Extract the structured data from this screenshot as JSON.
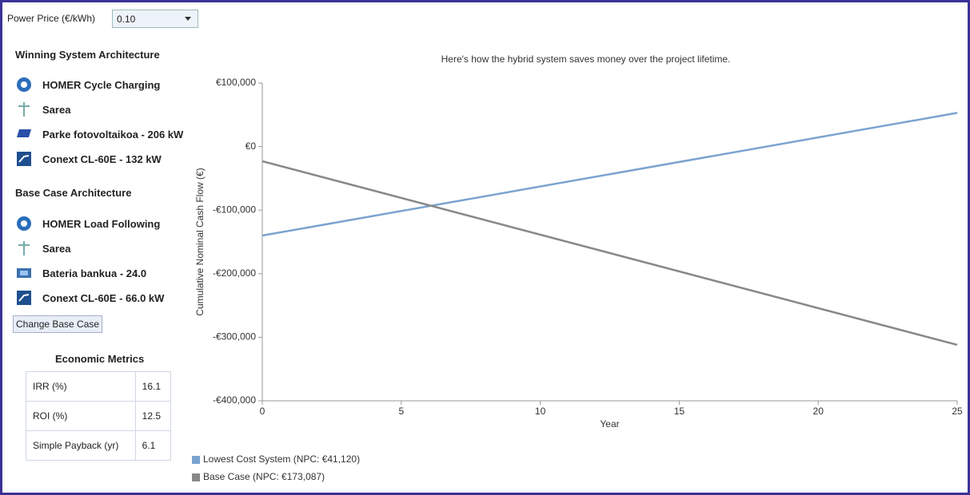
{
  "power_price": {
    "label": "Power Price (€/kWh)",
    "value": "0.10"
  },
  "winning": {
    "title": "Winning System Architecture",
    "items": [
      "HOMER Cycle Charging",
      "Sarea",
      "Parke fotovoltaikoa - 206 kW",
      "Conext CL-60E - 132 kW"
    ]
  },
  "base": {
    "title": "Base Case Architecture",
    "items": [
      "HOMER Load Following",
      "Sarea",
      "Bateria bankua - 24.0",
      "Conext CL-60E - 66.0 kW"
    ]
  },
  "button": "Change Base Case",
  "metrics": {
    "title": "Economic Metrics",
    "rows": [
      [
        "IRR (%)",
        "16.1"
      ],
      [
        "ROI (%)",
        "12.5"
      ],
      [
        "Simple Payback (yr)",
        "6.1"
      ]
    ]
  },
  "chart_data": {
    "type": "line",
    "title": "Here's how the hybrid system saves money over the project lifetime.",
    "x_label": "Year",
    "y_label": "Cumulative Nominal Cash Flow (€)",
    "x": [
      0,
      25
    ],
    "series": [
      {
        "name": "Lowest Cost System (NPC: €41,120)",
        "color": "#7ba3cf",
        "values": [
          -140000,
          53000
        ]
      },
      {
        "name": "Base Case (NPC: €173,087)",
        "color": "#888888",
        "values": [
          -23000,
          -312000
        ]
      }
    ],
    "xlim": [
      0,
      25
    ],
    "xticks": [
      0,
      5,
      10,
      15,
      20,
      25
    ],
    "ylim": [
      -400000,
      100000
    ],
    "yticks": [
      {
        "value": -400000,
        "label": "-€400,000"
      },
      {
        "value": -300000,
        "label": "-€300,000"
      },
      {
        "value": -200000,
        "label": "-€200,000"
      },
      {
        "value": -100000,
        "label": "-€100,000"
      },
      {
        "value": 0,
        "label": "€0"
      },
      {
        "value": 100000,
        "label": "€100,000"
      }
    ],
    "legend": "bottom-left"
  }
}
